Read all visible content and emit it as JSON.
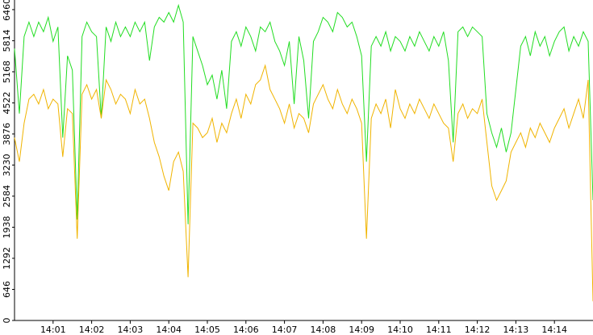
{
  "chart_data": {
    "type": "line",
    "x": [
      0,
      0.125,
      0.25,
      0.375,
      0.5,
      0.625,
      0.75,
      0.875,
      1,
      1.125,
      1.25,
      1.375,
      1.5,
      1.625,
      1.75,
      1.875,
      2,
      2.125,
      2.25,
      2.375,
      2.5,
      2.625,
      2.75,
      2.875,
      3,
      3.125,
      3.25,
      3.375,
      3.5,
      3.625,
      3.75,
      3.875,
      4,
      4.125,
      4.25,
      4.375,
      4.5,
      4.625,
      4.75,
      4.875,
      5,
      5.125,
      5.25,
      5.375,
      5.5,
      5.625,
      5.75,
      5.875,
      6,
      6.125,
      6.25,
      6.375,
      6.5,
      6.625,
      6.75,
      6.875,
      7,
      7.125,
      7.25,
      7.375,
      7.5,
      7.625,
      7.75,
      7.875,
      8,
      8.125,
      8.25,
      8.375,
      8.5,
      8.625,
      8.75,
      8.875,
      9,
      9.125,
      9.25,
      9.375,
      9.5,
      9.625,
      9.75,
      9.875,
      10,
      10.125,
      10.25,
      10.375,
      10.5,
      10.625,
      10.75,
      10.875,
      11,
      11.125,
      11.25,
      11.375,
      11.5,
      11.625,
      11.75,
      11.875,
      12,
      12.125,
      12.25,
      12.375,
      12.5,
      12.625,
      12.75,
      12.875,
      13,
      13.125,
      13.25,
      13.375,
      13.5,
      13.625,
      13.75,
      13.875,
      14,
      14.125,
      14.25,
      14.375,
      14.5,
      14.625,
      14.75,
      14.875,
      15
    ],
    "series": [
      {
        "color": "#22dd22",
        "values": [
          5650,
          4300,
          5900,
          6200,
          5900,
          6200,
          6000,
          6300,
          5800,
          6100,
          3800,
          5500,
          5200,
          2100,
          5900,
          6200,
          6000,
          5900,
          4200,
          6100,
          5800,
          6200,
          5900,
          6100,
          5900,
          6200,
          6000,
          6200,
          5400,
          6100,
          6300,
          6200,
          6400,
          6200,
          6550,
          6200,
          2000,
          5900,
          5600,
          5300,
          4900,
          5100,
          4600,
          5200,
          4400,
          5800,
          6000,
          5700,
          6100,
          5900,
          5600,
          6100,
          6000,
          6200,
          5800,
          5600,
          5300,
          5800,
          4500,
          5900,
          5400,
          4200,
          5800,
          6000,
          6300,
          6200,
          6000,
          6400,
          6300,
          6100,
          6200,
          5900,
          5500,
          3300,
          5700,
          5900,
          5700,
          6000,
          5600,
          5900,
          5800,
          5600,
          5900,
          5700,
          6000,
          5800,
          5600,
          5900,
          5700,
          6000,
          5400,
          3700,
          6000,
          6100,
          5900,
          6100,
          6000,
          5900,
          4300,
          3900,
          3600,
          4000,
          3500,
          3900,
          4800,
          5700,
          5900,
          5500,
          6000,
          5700,
          5900,
          5500,
          5800,
          6000,
          6100,
          5600,
          5900,
          5700,
          6000,
          5800,
          2500
        ]
      },
      {
        "color": "#f0b400",
        "values": [
          3800,
          3300,
          4100,
          4600,
          4700,
          4500,
          4800,
          4400,
          4600,
          4500,
          3400,
          4400,
          4300,
          1700,
          4700,
          4900,
          4600,
          4800,
          4200,
          5000,
          4800,
          4500,
          4700,
          4600,
          4300,
          4800,
          4500,
          4600,
          4200,
          3700,
          3400,
          3000,
          2700,
          3300,
          3500,
          3100,
          900,
          4100,
          4000,
          3800,
          3900,
          4200,
          3700,
          4100,
          3900,
          4300,
          4600,
          4200,
          4700,
          4500,
          4900,
          5000,
          5300,
          4800,
          4600,
          4400,
          4100,
          4500,
          4000,
          4300,
          4200,
          3900,
          4500,
          4700,
          4900,
          4600,
          4400,
          4800,
          4500,
          4300,
          4600,
          4400,
          4100,
          1700,
          4200,
          4500,
          4300,
          4600,
          4000,
          4800,
          4400,
          4200,
          4500,
          4300,
          4600,
          4400,
          4200,
          4500,
          4300,
          4100,
          4000,
          3300,
          4300,
          4500,
          4200,
          4400,
          4300,
          4600,
          3700,
          2800,
          2500,
          2700,
          2900,
          3500,
          3700,
          3900,
          3600,
          4000,
          3800,
          4100,
          3900,
          3700,
          4000,
          4200,
          4400,
          4000,
          4300,
          4600,
          4200,
          5000,
          400
        ]
      }
    ],
    "xlim": [
      0,
      15
    ],
    "xticks": [
      {
        "value": 1,
        "label": "14:01"
      },
      {
        "value": 2,
        "label": "14:02"
      },
      {
        "value": 3,
        "label": "14:03"
      },
      {
        "value": 4,
        "label": "14:04"
      },
      {
        "value": 5,
        "label": "14:05"
      },
      {
        "value": 6,
        "label": "14:06"
      },
      {
        "value": 7,
        "label": "14:07"
      },
      {
        "value": 8,
        "label": "14:08"
      },
      {
        "value": 9,
        "label": "14:09"
      },
      {
        "value": 10,
        "label": "14:10"
      },
      {
        "value": 11,
        "label": "14:11"
      },
      {
        "value": 12,
        "label": "14:12"
      },
      {
        "value": 13,
        "label": "14:13"
      },
      {
        "value": 14,
        "label": "14:14"
      }
    ],
    "ylim": [
      0,
      6660
    ],
    "yticks": [
      0,
      646,
      1292,
      1938,
      2584,
      3230,
      3876,
      4522,
      5168,
      5814,
      6460
    ]
  }
}
